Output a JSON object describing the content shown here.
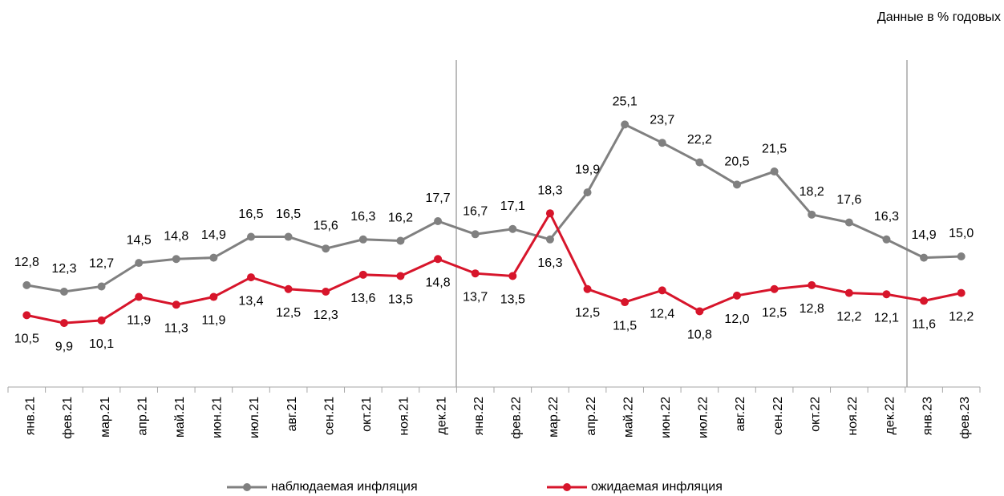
{
  "chart_data": {
    "type": "line",
    "note": "Данные в % годовых",
    "categories": [
      "янв.21",
      "фев.21",
      "мар.21",
      "апр.21",
      "май.21",
      "июн.21",
      "июл.21",
      "авг.21",
      "сен.21",
      "окт.21",
      "ноя.21",
      "дек.21",
      "янв.22",
      "фев.22",
      "мар.22",
      "апр.22",
      "май.22",
      "июн.22",
      "июл.22",
      "авг.22",
      "сен.22",
      "окт.22",
      "ноя.22",
      "дек.22",
      "янв.23",
      "фев.23"
    ],
    "series": [
      {
        "name": "наблюдаемая инфляция",
        "color": "#808080",
        "values": [
          12.8,
          12.3,
          12.7,
          14.5,
          14.8,
          14.9,
          16.5,
          16.5,
          15.6,
          16.3,
          16.2,
          17.7,
          16.7,
          17.1,
          16.3,
          19.9,
          25.1,
          23.7,
          22.2,
          20.5,
          21.5,
          18.2,
          17.6,
          16.3,
          14.9,
          15.0
        ],
        "value_labels": [
          "12,8",
          "12,3",
          "12,7",
          "14,5",
          "14,8",
          "14,9",
          "16,5",
          "16,5",
          "15,6",
          "16,3",
          "16,2",
          "17,7",
          "16,7",
          "17,1",
          "16,3",
          "19,9",
          "25,1",
          "23,7",
          "22,2",
          "20,5",
          "21,5",
          "18,2",
          "17,6",
          "16,3",
          "14,9",
          "15,0"
        ]
      },
      {
        "name": "ожидаемая инфляция",
        "color": "#d7152b",
        "values": [
          10.5,
          9.9,
          10.1,
          11.9,
          11.3,
          11.9,
          13.4,
          12.5,
          12.3,
          13.6,
          13.5,
          14.8,
          13.7,
          13.5,
          18.3,
          12.5,
          11.5,
          12.4,
          10.8,
          12.0,
          12.5,
          12.8,
          12.2,
          12.1,
          11.6,
          12.2
        ],
        "value_labels": [
          "10,5",
          "9,9",
          "10,1",
          "11,9",
          "11,3",
          "11,9",
          "13,4",
          "12,5",
          "12,3",
          "13,6",
          "13,5",
          "14,8",
          "13,7",
          "13,5",
          "18,3",
          "12,5",
          "11,5",
          "12,4",
          "10,8",
          "12,0",
          "12,5",
          "12,8",
          "12,2",
          "12,1",
          "11,6",
          "12,2"
        ]
      }
    ],
    "ylim": [
      5,
      30
    ]
  }
}
